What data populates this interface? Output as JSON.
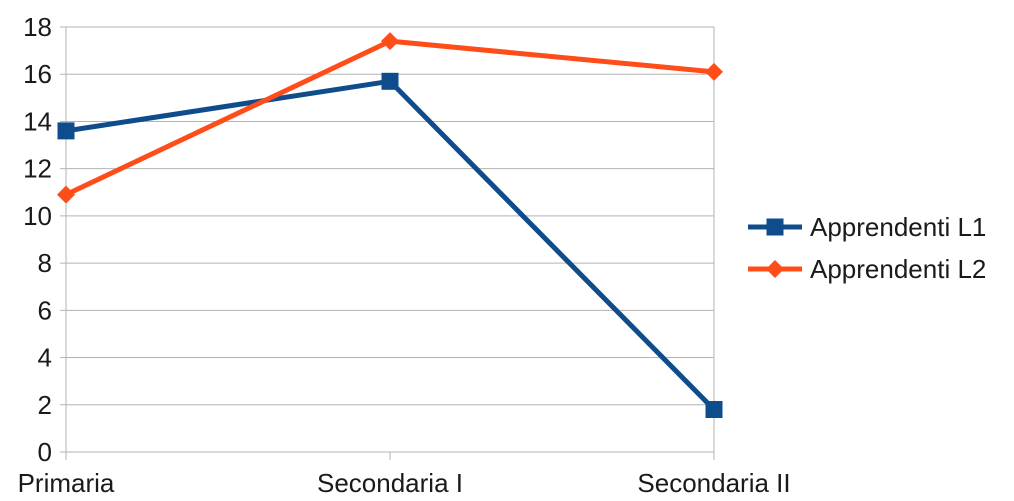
{
  "chart_data": {
    "type": "line",
    "title": "",
    "xlabel": "",
    "ylabel": "",
    "categories": [
      "Primaria",
      "Secondaria I",
      "Secondaria II"
    ],
    "ylim": [
      0,
      18
    ],
    "yticks": [
      0,
      2,
      4,
      6,
      8,
      10,
      12,
      14,
      16,
      18
    ],
    "grid": true,
    "legend_position": "right",
    "series": [
      {
        "name": "Apprendenti L1",
        "values": [
          13.6,
          15.7,
          1.8
        ],
        "color": "#0f4c8c",
        "marker": "square"
      },
      {
        "name": "Apprendenti L2",
        "values": [
          10.9,
          17.4,
          16.1
        ],
        "color": "#ff4d1a",
        "marker": "diamond"
      }
    ]
  }
}
